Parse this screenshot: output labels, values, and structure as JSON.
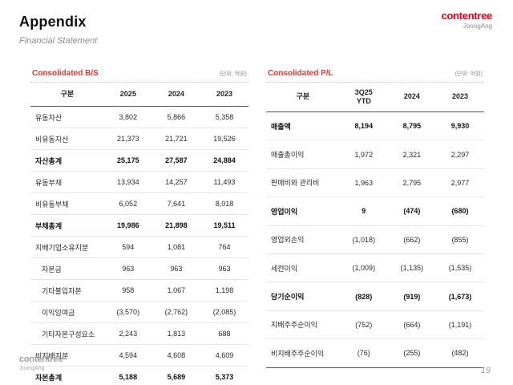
{
  "page": {
    "title": "Appendix",
    "subtitle": "Financial Statement",
    "page_number": "19"
  },
  "logo_top": {
    "brand": "contentree",
    "sub_brand": "JoongAng",
    "brand_color": "#e60013"
  },
  "logo_bottom": {
    "brand": "contentree",
    "sub_brand": "JoongAng"
  },
  "tables": {
    "bs": {
      "title": "Consolidated B/S",
      "unit_note": "(단위: 억원)",
      "columns": [
        "구분",
        "2025",
        "2024",
        "2023"
      ],
      "rows": [
        {
          "label": "유동자산",
          "values": [
            "3,802",
            "5,866",
            "5,358"
          ],
          "bold": false,
          "indent": false
        },
        {
          "label": "비유동자산",
          "values": [
            "21,373",
            "21,721",
            "19,526"
          ],
          "bold": false,
          "indent": false
        },
        {
          "label": "자산총계",
          "values": [
            "25,175",
            "27,587",
            "24,884"
          ],
          "bold": true,
          "indent": false
        },
        {
          "label": "유동부채",
          "values": [
            "13,934",
            "14,257",
            "11,493"
          ],
          "bold": false,
          "indent": false
        },
        {
          "label": "비유동부채",
          "values": [
            "6,052",
            "7,641",
            "8,018"
          ],
          "bold": false,
          "indent": false
        },
        {
          "label": "부채총계",
          "values": [
            "19,986",
            "21,898",
            "19,511"
          ],
          "bold": true,
          "indent": false
        },
        {
          "label": "지배기업소유지분",
          "values": [
            "594",
            "1,081",
            "764"
          ],
          "bold": false,
          "indent": false
        },
        {
          "label": "자본금",
          "values": [
            "963",
            "963",
            "963"
          ],
          "bold": false,
          "indent": true
        },
        {
          "label": "기타불입자본",
          "values": [
            "958",
            "1,067",
            "1,198"
          ],
          "bold": false,
          "indent": true
        },
        {
          "label": "이익잉여금",
          "values": [
            "(3,570)",
            "(2,762)",
            "(2,085)"
          ],
          "bold": false,
          "indent": true
        },
        {
          "label": "기타자본구성요소",
          "values": [
            "2,243",
            "1,813",
            "688"
          ],
          "bold": false,
          "indent": true
        },
        {
          "label": "비지배지분",
          "values": [
            "4,594",
            "4,608",
            "4,609"
          ],
          "bold": false,
          "indent": false
        },
        {
          "label": "자본총계",
          "values": [
            "5,188",
            "5,689",
            "5,373"
          ],
          "bold": true,
          "indent": false
        }
      ]
    },
    "pl": {
      "title": "Consolidated P/L",
      "unit_note": "(단위: 억원)",
      "columns": [
        "구분",
        "3Q25\nYTD",
        "2024",
        "2023"
      ],
      "rows": [
        {
          "label": "매출액",
          "values": [
            "8,194",
            "8,795",
            "9,930"
          ],
          "bold": true,
          "indent": false
        },
        {
          "label": "매출총이익",
          "values": [
            "1,972",
            "2,321",
            "2,297"
          ],
          "bold": false,
          "indent": false
        },
        {
          "label": "판매비와 관리비",
          "values": [
            "1,963",
            "2,795",
            "2,977"
          ],
          "bold": false,
          "indent": false
        },
        {
          "label": "영업이익",
          "values": [
            "9",
            "(474)",
            "(680)"
          ],
          "bold": true,
          "indent": false
        },
        {
          "label": "영업외손익",
          "values": [
            "(1,018)",
            "(662)",
            "(855)"
          ],
          "bold": false,
          "indent": false
        },
        {
          "label": "세전이익",
          "values": [
            "(1,009)",
            "(1,135)",
            "(1,535)"
          ],
          "bold": false,
          "indent": false
        },
        {
          "label": "당기순이익",
          "values": [
            "(828)",
            "(919)",
            "(1,673)"
          ],
          "bold": true,
          "indent": false
        },
        {
          "label": "지배주주순이익",
          "values": [
            "(752)",
            "(664)",
            "(1,191)"
          ],
          "bold": false,
          "indent": false
        },
        {
          "label": "비지배주주순이익",
          "values": [
            "(76)",
            "(255)",
            "(482)"
          ],
          "bold": false,
          "indent": false
        }
      ]
    }
  }
}
